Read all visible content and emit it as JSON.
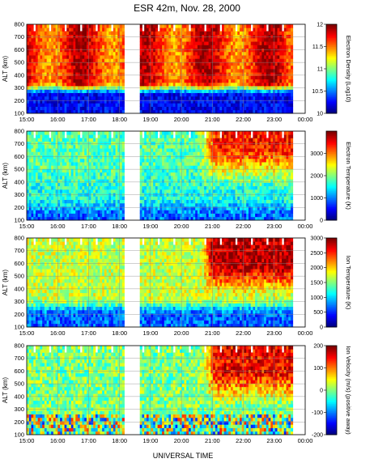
{
  "chart_data": {
    "title": "ESR 42m,  Nov. 28, 2000",
    "xlabel": "UNIVERSAL TIME",
    "x_ticks": [
      "15:00",
      "16:00",
      "17:00",
      "18:00",
      "19:00",
      "20:00",
      "21:00",
      "22:00",
      "23:00",
      "00:00"
    ],
    "x_range_hours_ut": [
      15,
      24
    ],
    "panels": [
      {
        "type": "heatmap",
        "ylabel": "ALT (km)",
        "y_ticks": [
          100,
          200,
          300,
          400,
          500,
          600,
          700,
          800
        ],
        "ylim": [
          100,
          800
        ],
        "colorbar_label": "Electron Density (Log10)",
        "colorbar_ticks": [
          10,
          10.5,
          11,
          11.5,
          12
        ],
        "clim": [
          10,
          12
        ],
        "description": "layer of high density (~11.5-12) from ~300 to 800 km, low density (~10-10.5) below 250 km"
      },
      {
        "type": "heatmap",
        "ylabel": "ALT (km)",
        "y_ticks": [
          100,
          200,
          300,
          400,
          500,
          600,
          700,
          800
        ],
        "ylim": [
          100,
          800
        ],
        "colorbar_label": "Electron Temperature (K)",
        "colorbar_ticks": [
          0,
          1000,
          2000,
          3000
        ],
        "clim": [
          0,
          4000
        ],
        "description": "mostly 1500-2500 K, warming to 3000-4000 K at high altitude after ~20:30 UT"
      },
      {
        "type": "heatmap",
        "ylabel": "ALT (km)",
        "y_ticks": [
          100,
          200,
          300,
          400,
          500,
          600,
          700,
          800
        ],
        "ylim": [
          100,
          800
        ],
        "colorbar_label": "Ion Temperature (K)",
        "colorbar_ticks": [
          0,
          500,
          1000,
          1500,
          2000,
          2500,
          3000
        ],
        "clim": [
          0,
          3000
        ],
        "description": "~1500-2000 K above 300 km, rising to 2500-3000 K after ~20:45 UT, cooler below 200 km"
      },
      {
        "type": "heatmap",
        "ylabel": "ALT (km)",
        "y_ticks": [
          100,
          200,
          300,
          400,
          500,
          600,
          700,
          800
        ],
        "ylim": [
          100,
          800
        ],
        "colorbar_label": "Ion Velocity (m/s) (positive away)",
        "colorbar_ticks": [
          -200,
          -100,
          0,
          100,
          200
        ],
        "clim": [
          -200,
          200
        ],
        "description": "near zero before 20:30 UT, strongly positive (100-200 m/s) at high altitude after ~21:00 UT"
      }
    ],
    "data_gaps_ut": [
      [
        18.1,
        18.6
      ]
    ],
    "colormap": "jet",
    "grid": true
  }
}
